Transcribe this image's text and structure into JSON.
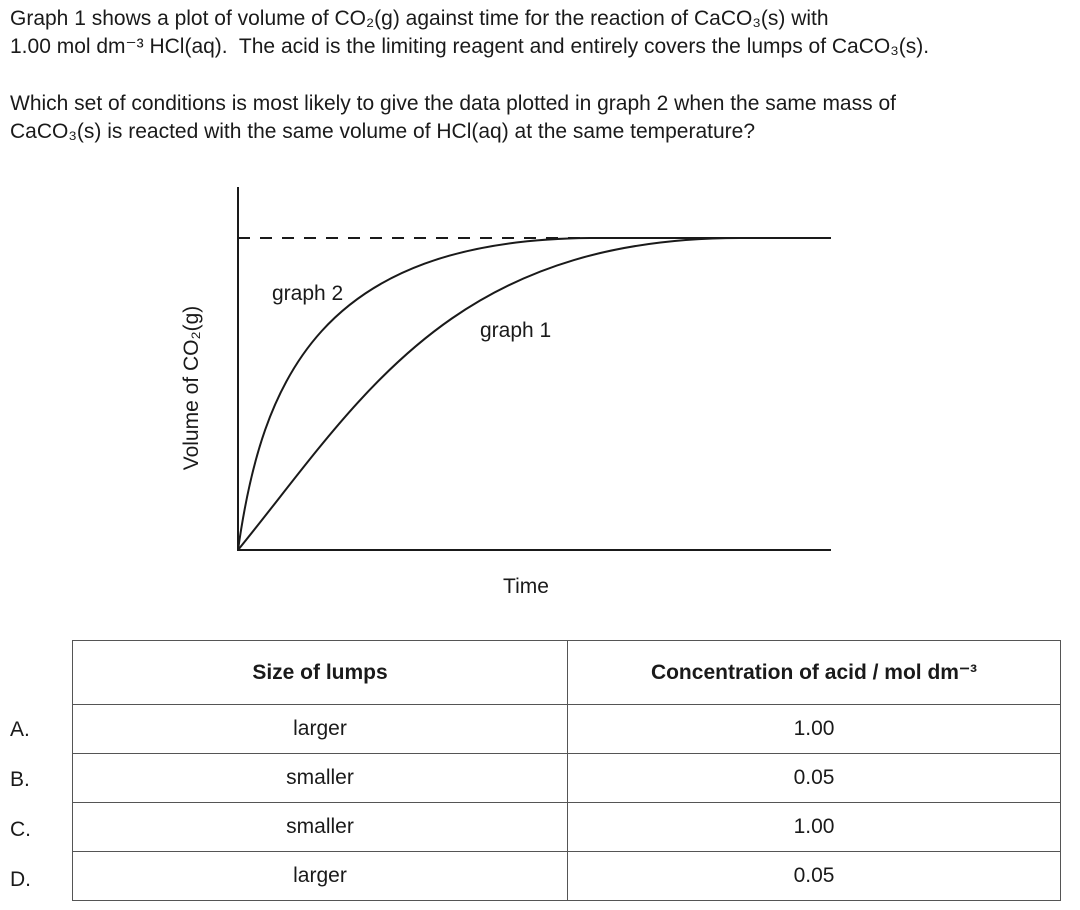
{
  "question": {
    "paragraphs": [
      [
        "Graph 1 shows a plot of volume of CO₂(g) against time for the reaction of CaCO₃(s) with",
        "1.00 mol dm⁻³ HCl(aq).  The acid is the limiting reagent and entirely covers the lumps of CaCO₃(s)."
      ],
      [
        "Which set of conditions is most likely to give the data plotted in graph 2 when the same mass of",
        "CaCO₃(s) is reacted with the same volume of HCl(aq) at the same temperature?"
      ]
    ]
  },
  "diagram": {
    "y_axis_label": "Volume of CO₂(g)",
    "x_axis_label": "Time",
    "curve_labels": [
      "graph 2",
      "graph 1"
    ]
  },
  "table": {
    "headers": [
      "Size of lumps",
      "Concentration of acid / mol dm⁻³"
    ],
    "rows": [
      {
        "option": "A.",
        "cells": [
          "larger",
          "1.00"
        ]
      },
      {
        "option": "B.",
        "cells": [
          "smaller",
          "0.05"
        ]
      },
      {
        "option": "C.",
        "cells": [
          "smaller",
          "1.00"
        ]
      },
      {
        "option": "D.",
        "cells": [
          "larger",
          "0.05"
        ]
      }
    ]
  }
}
